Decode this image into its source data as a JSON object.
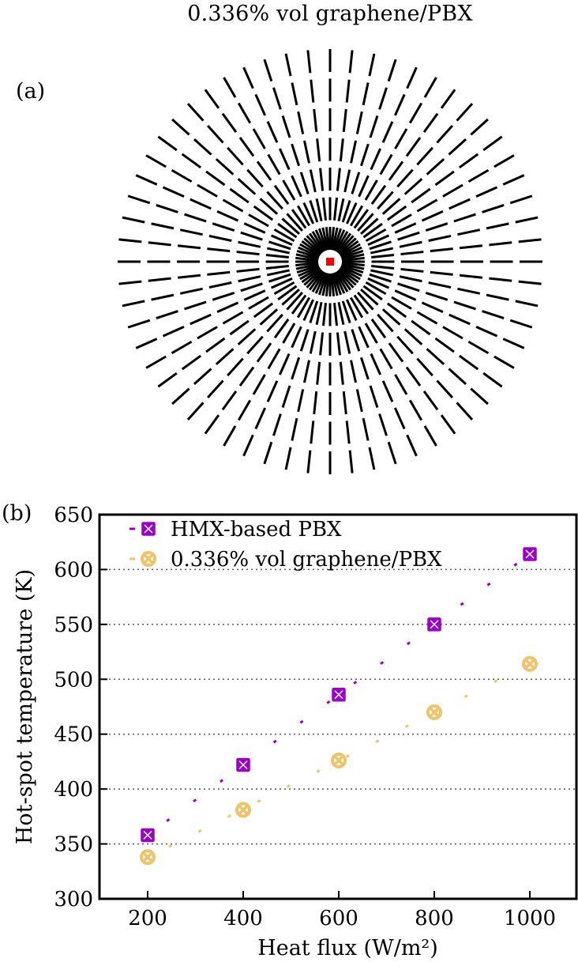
{
  "panel_a": {
    "label": "(a)",
    "title": "0.336% vol graphene/PBX",
    "pattern": {
      "rays": 60,
      "rings": 7,
      "dash_color": "#000000",
      "center_color": "#ff0000"
    }
  },
  "panel_b": {
    "label": "(b)"
  },
  "chart_data": {
    "type": "line",
    "title": "",
    "xlabel": "Heat flux (W/m²)",
    "ylabel": "Hot-spot temperature (K)",
    "xlim": [
      100,
      1100
    ],
    "ylim": [
      300,
      650
    ],
    "xticks": [
      200,
      400,
      600,
      800,
      1000
    ],
    "yticks": [
      300,
      350,
      400,
      450,
      500,
      550,
      600,
      650
    ],
    "xtick_labels": [
      "200",
      "400",
      "600",
      "800",
      "1000"
    ],
    "ytick_labels": [
      "300",
      "350",
      "400",
      "450",
      "500",
      "550",
      "600",
      "650"
    ],
    "grid": "horizontal dotted",
    "legend": "top-left",
    "x": [
      200,
      400,
      600,
      800,
      1000
    ],
    "series": [
      {
        "name": "HMX-based PBX",
        "values": [
          358,
          422,
          486,
          550,
          614
        ],
        "color": "#9b00c8",
        "marker": "square-x",
        "line": "dashed-linear-fit"
      },
      {
        "name": "0.336% vol graphene/PBX",
        "values": [
          338,
          381,
          426,
          470,
          514
        ],
        "color": "#edc46b",
        "marker": "circle-x",
        "line": "dashed-linear-fit"
      }
    ]
  }
}
